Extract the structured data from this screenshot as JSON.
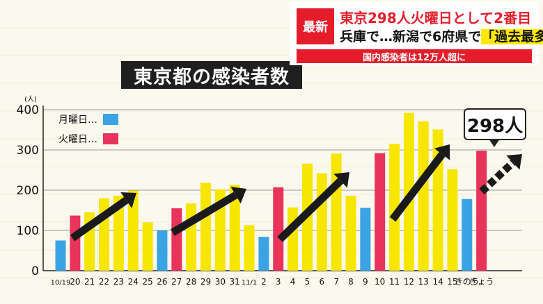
{
  "title": "東京都の感染者数",
  "news": {
    "tag": "最新",
    "line1": "東京298人火曜日として2番目",
    "line2_prefix": "兵庫で…新潟で6府県で",
    "line2_highlight": "「過去最多」",
    "subline": "国内感染者は12万人超に"
  },
  "callout_text": "298人",
  "legend": {
    "monday_label": "月曜日…",
    "tuesday_label": "火曜日…"
  },
  "colors": {
    "monday": "#3aa3e3",
    "tuesday": "#e8335b",
    "other": "#f7e600",
    "arrow": "#1a1a1a"
  },
  "chart_data": {
    "type": "bar",
    "ylabel": "(人)",
    "ylim": [
      0,
      400
    ],
    "yticks": [
      0,
      100,
      200,
      300,
      400
    ],
    "categories": [
      "10/19",
      "20",
      "21",
      "22",
      "23",
      "24",
      "25",
      "26",
      "27",
      "28",
      "29",
      "30",
      "31",
      "11/1",
      "2",
      "3",
      "4",
      "5",
      "6",
      "7",
      "8",
      "9",
      "10",
      "11",
      "12",
      "13",
      "14",
      "15",
      "きのう",
      "きょう"
    ],
    "values": [
      75,
      137,
      145,
      180,
      186,
      199,
      120,
      100,
      155,
      167,
      218,
      202,
      213,
      113,
      84,
      207,
      157,
      266,
      242,
      291,
      186,
      156,
      292,
      315,
      392,
      371,
      351,
      252,
      178,
      298
    ],
    "day_type": [
      "mon",
      "tue",
      "other",
      "other",
      "other",
      "other",
      "other",
      "mon",
      "tue",
      "other",
      "other",
      "other",
      "other",
      "other",
      "mon",
      "tue",
      "other",
      "other",
      "other",
      "other",
      "other",
      "mon",
      "tue",
      "other",
      "other",
      "other",
      "other",
      "other",
      "mon",
      "tue"
    ]
  }
}
